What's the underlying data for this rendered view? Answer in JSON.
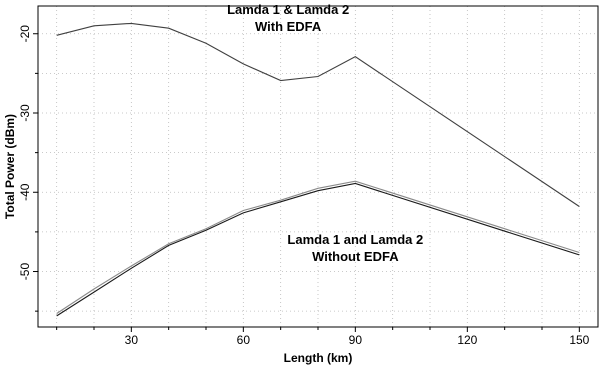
{
  "chart_data": {
    "type": "line",
    "title": "",
    "xlabel": "Length (km)",
    "ylabel": "Total Power (dBm)",
    "xlim": [
      5,
      155
    ],
    "ylim": [
      -57,
      -16.5
    ],
    "xticks": [
      30,
      60,
      90,
      120,
      150
    ],
    "yticks": [
      -20,
      -30,
      -40,
      -50
    ],
    "grid": true,
    "annotations": [
      {
        "lines": [
          "Lamda 1 & Lamda 2",
          "With EDFA"
        ],
        "x": 72,
        "y": -17.5
      },
      {
        "lines": [
          "Lamda 1 and Lamda  2",
          "Without EDFA"
        ],
        "x": 90,
        "y": -46.5
      }
    ],
    "series": [
      {
        "color": "#404040",
        "x": [
          10,
          20,
          30,
          40,
          50,
          60,
          70,
          80,
          90,
          150
        ],
        "y": [
          -20.2,
          -19.0,
          -18.7,
          -19.3,
          -21.2,
          -23.8,
          -25.9,
          -25.4,
          -22.9,
          -41.8
        ]
      },
      {
        "color": "#8a8a8a",
        "x": [
          10,
          20,
          30,
          40,
          50,
          60,
          70,
          80,
          90,
          150
        ],
        "y": [
          -55.3,
          -52.2,
          -49.3,
          -46.5,
          -44.6,
          -42.3,
          -41.0,
          -39.5,
          -38.6,
          -47.6
        ]
      },
      {
        "color": "#1a1a1a",
        "x": [
          10,
          20,
          30,
          40,
          50,
          60,
          70,
          80,
          90,
          150
        ],
        "y": [
          -55.6,
          -52.6,
          -49.6,
          -46.7,
          -44.8,
          -42.6,
          -41.2,
          -39.8,
          -38.9,
          -47.9
        ]
      }
    ]
  }
}
